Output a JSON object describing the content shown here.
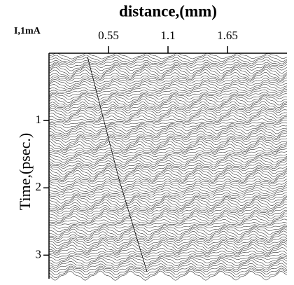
{
  "chart_data": {
    "type": "waterfall",
    "title": "distance,(mm)",
    "corner_label": "I,1mA",
    "y_label": "Time,(psec.)",
    "xlim": [
      0,
      2.2
    ],
    "xticks": [
      0.55,
      1.1,
      1.65
    ],
    "ylim": [
      0,
      3.35
    ],
    "yticks": [
      1,
      2,
      3
    ],
    "y_inverted": true,
    "color": "#000000"
  }
}
